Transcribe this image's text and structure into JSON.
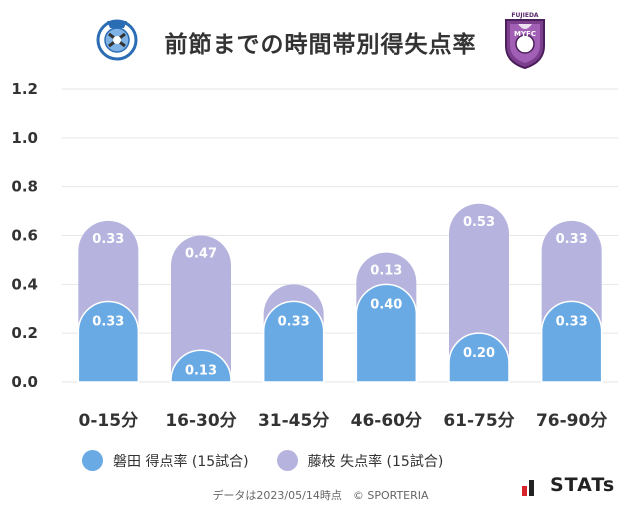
{
  "title": "前節までの時間帯別得失点率",
  "chart_data": {
    "type": "bar",
    "stacked": true,
    "categories": [
      "0-15分",
      "16-30分",
      "31-45分",
      "46-60分",
      "61-75分",
      "76-90分"
    ],
    "series": [
      {
        "name": "磐田 得点率 (15試合)",
        "values": [
          0.33,
          0.13,
          0.33,
          0.4,
          0.2,
          0.33
        ],
        "labels": [
          "0.33",
          "0.13",
          "0.33",
          "0.40",
          "0.20",
          "0.33"
        ],
        "color": "#6aaae4"
      },
      {
        "name": "藤枝 失点率 (15試合)",
        "values": [
          0.33,
          0.47,
          0.07,
          0.13,
          0.53,
          0.33
        ],
        "labels": [
          "0.33",
          "0.47",
          "",
          "0.13",
          "0.53",
          "0.33"
        ],
        "color": "#b6b4de"
      }
    ],
    "yticks": [
      "0.0",
      "0.2",
      "0.4",
      "0.6",
      "0.8",
      "1.0",
      "1.2"
    ],
    "ylim": [
      0,
      1.2
    ],
    "grid": true,
    "legend_position": "bottom-left"
  },
  "footer": "データは2023/05/14時点　© SPORTERIA",
  "brand": "STATs",
  "right_crest_text": "FUJIEDA"
}
